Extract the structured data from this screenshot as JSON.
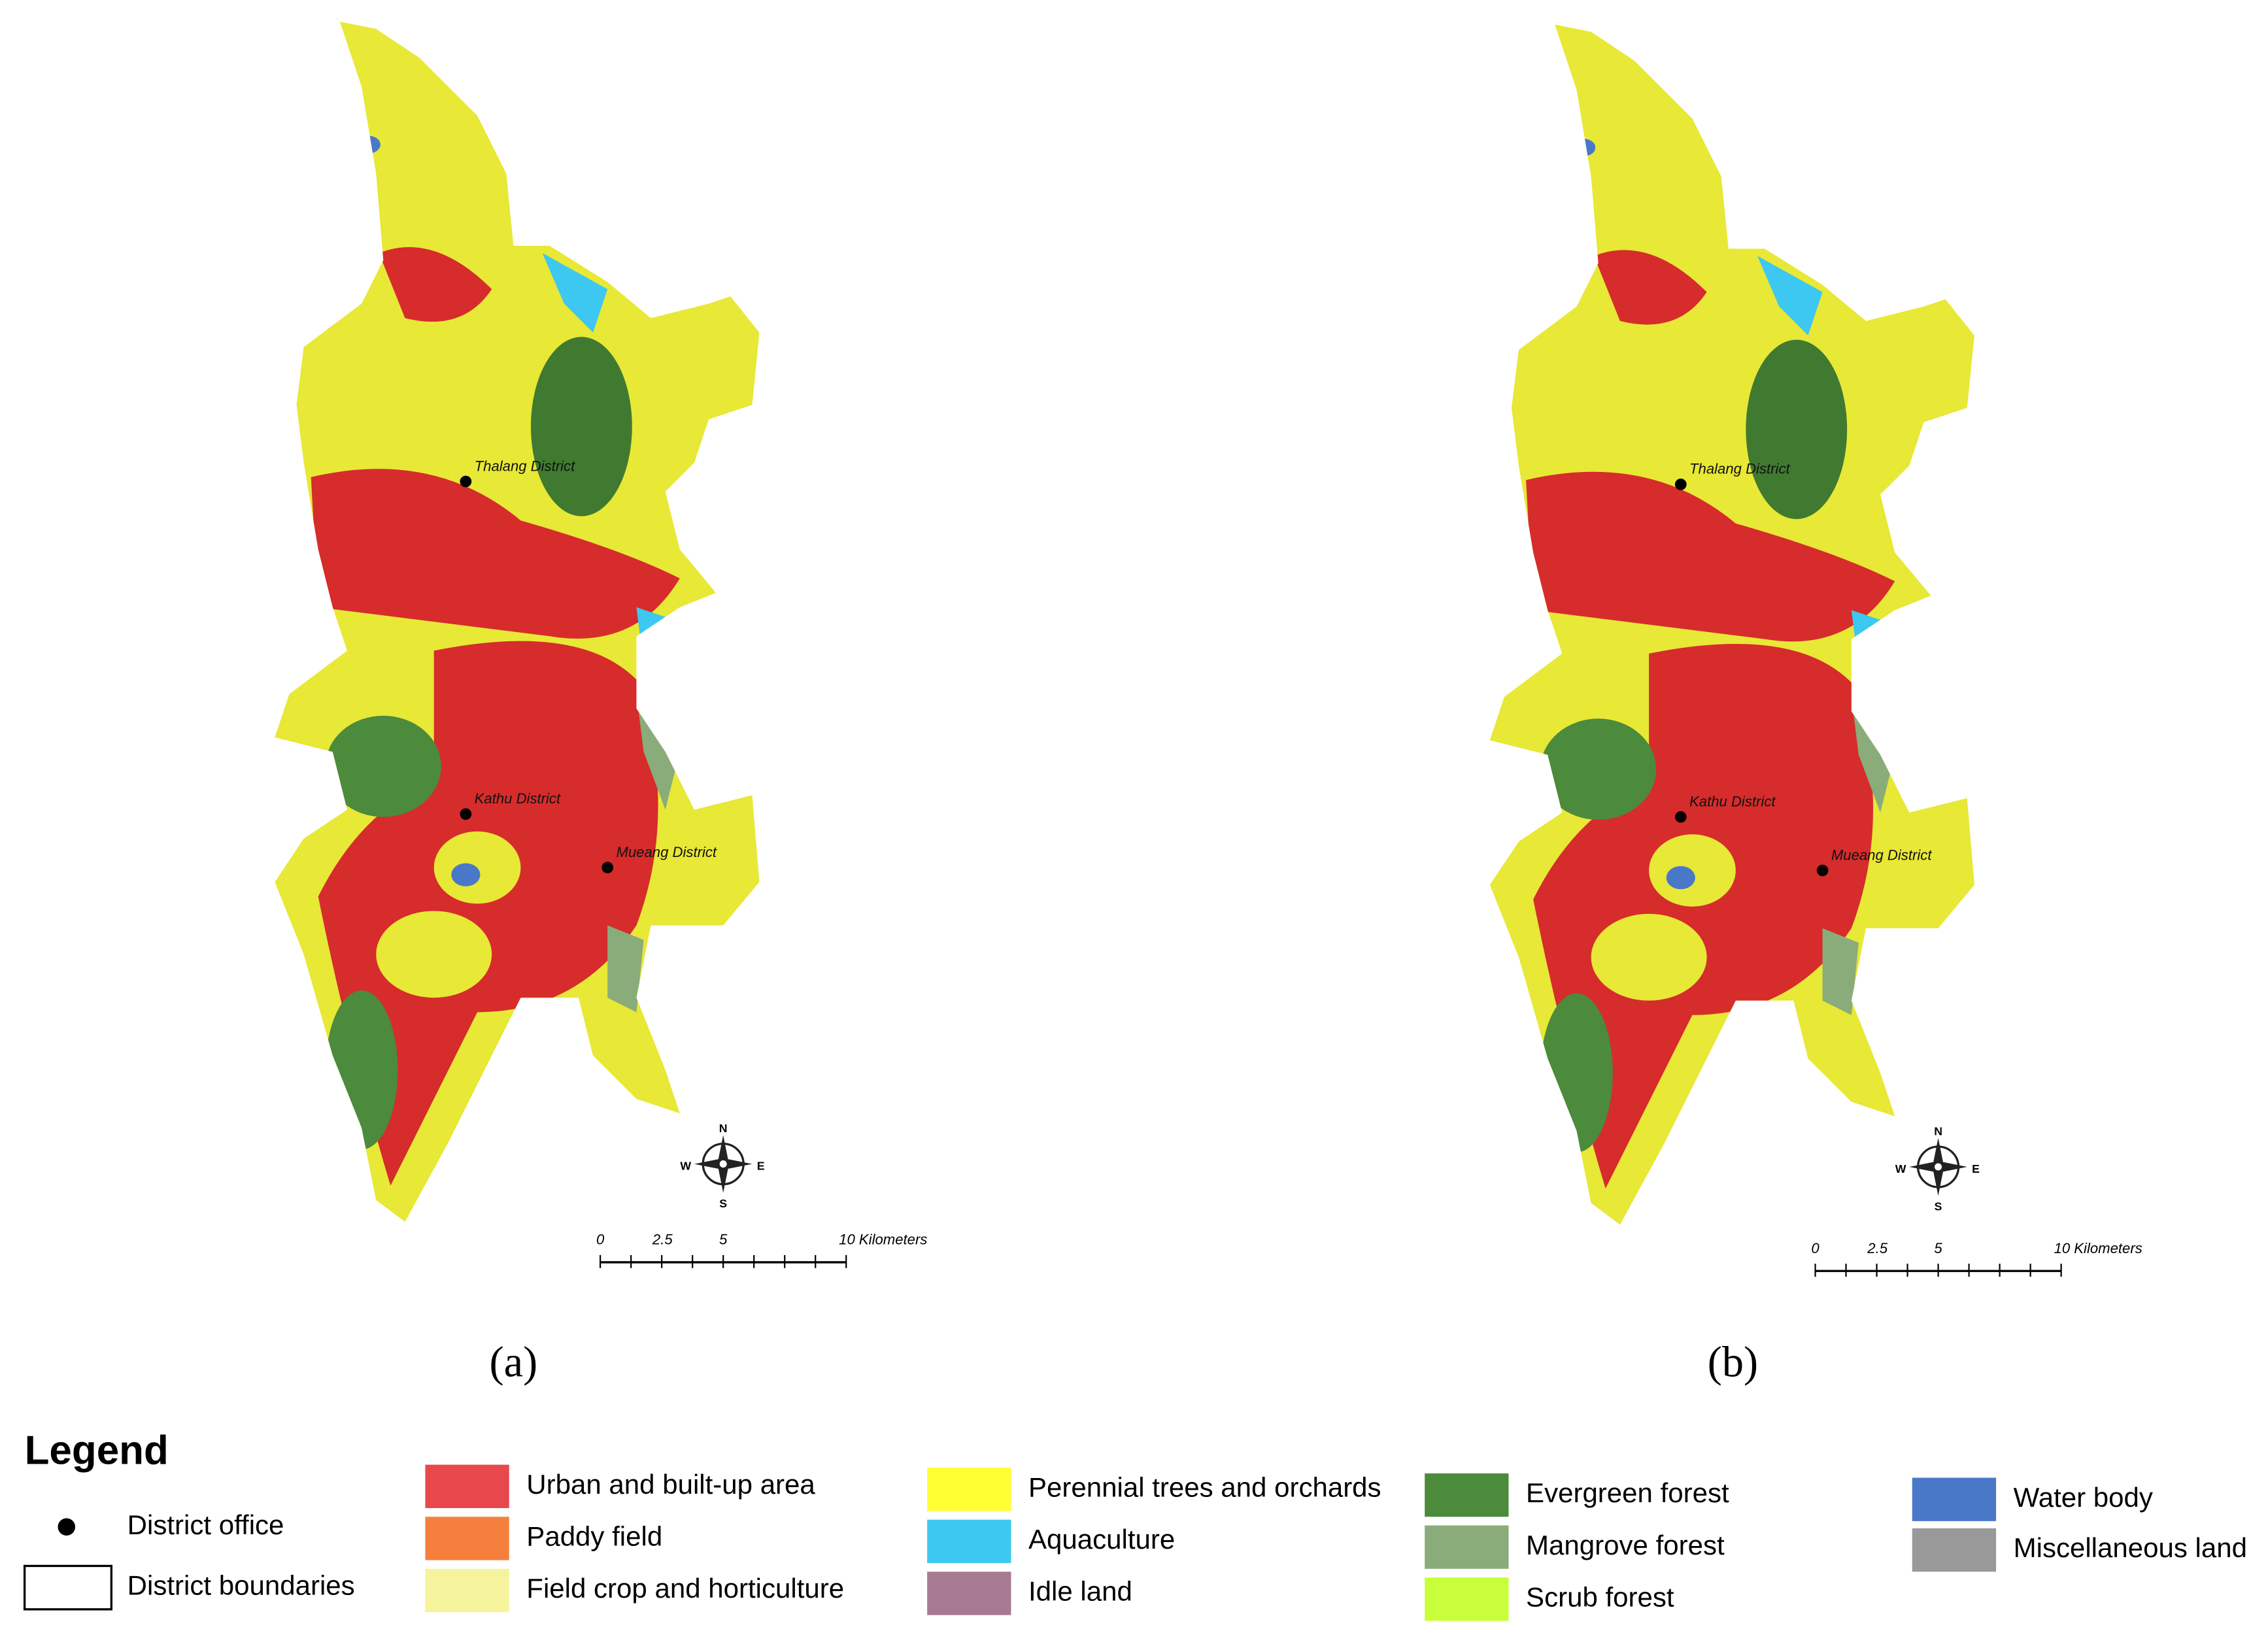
{
  "maps": [
    {
      "label": "(a)",
      "districts": [
        "Thalang District",
        "Kathu District",
        "Mueang District"
      ],
      "compass": [
        "N",
        "S",
        "W",
        "E"
      ],
      "scale_bar": [
        "0",
        "2.5",
        "5",
        "10 Kilometers"
      ]
    },
    {
      "label": "(b)",
      "districts": [
        "Thalang District",
        "Kathu District",
        "Mueang District"
      ],
      "compass": [
        "N",
        "S",
        "W",
        "E"
      ],
      "scale_bar": [
        "0",
        "2.5",
        "5",
        "10 Kilometers"
      ]
    }
  ],
  "legend": {
    "title": "Legend",
    "symbols": [
      "District office",
      "District boundaries"
    ],
    "classes": [
      {
        "name": "Urban and built-up area",
        "color": "#e8484c"
      },
      {
        "name": "Paddy field",
        "color": "#f5803e"
      },
      {
        "name": "Field crop and horticulture",
        "color": "#f5f39c"
      },
      {
        "name": "Perennial trees and orchards",
        "color": "#ffff33"
      },
      {
        "name": "Aquaculture",
        "color": "#3cc8f0"
      },
      {
        "name": "Idle land",
        "color": "#a87a92"
      },
      {
        "name": "Evergreen forest",
        "color": "#4c8a3c"
      },
      {
        "name": "Mangrove forest",
        "color": "#8aac7a"
      },
      {
        "name": "Scrub forest",
        "color": "#c8ff3a"
      },
      {
        "name": "Water body",
        "color": "#4a78c8"
      },
      {
        "name": "Miscellaneous land",
        "color": "#999999"
      }
    ]
  }
}
